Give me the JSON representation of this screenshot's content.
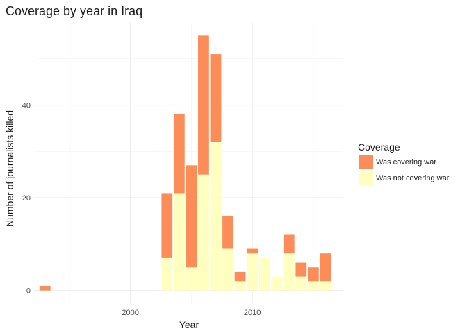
{
  "chart_data": {
    "type": "bar",
    "stacked": true,
    "title": "Coverage by year in Iraq",
    "xlabel": "Year",
    "ylabel": "Number of journalists killed",
    "x": [
      1993,
      2003,
      2004,
      2005,
      2006,
      2007,
      2008,
      2009,
      2010,
      2011,
      2012,
      2013,
      2014,
      2015,
      2016
    ],
    "series": [
      {
        "name": "Was not covering war",
        "color": "#FFFFC0",
        "values": [
          0,
          7,
          21,
          5,
          25,
          32,
          9,
          2,
          8,
          7,
          3,
          8,
          3,
          2,
          2
        ]
      },
      {
        "name": "Was covering war",
        "color": "#FC8D59",
        "values": [
          1,
          14,
          17,
          22,
          30,
          19,
          7,
          2,
          1,
          0,
          0,
          4,
          3,
          3,
          6
        ]
      }
    ],
    "xlim": [
      1992.1,
      2017.4
    ],
    "ylim": [
      -2.75,
      57.75
    ],
    "xticks": [
      2000,
      2010
    ],
    "xminor": [
      1995,
      2005,
      2015
    ],
    "yticks": [
      0,
      20,
      40
    ],
    "yminor": [
      10,
      30,
      50
    ],
    "grid": true,
    "legend": {
      "title": "Coverage",
      "position": "right"
    }
  }
}
